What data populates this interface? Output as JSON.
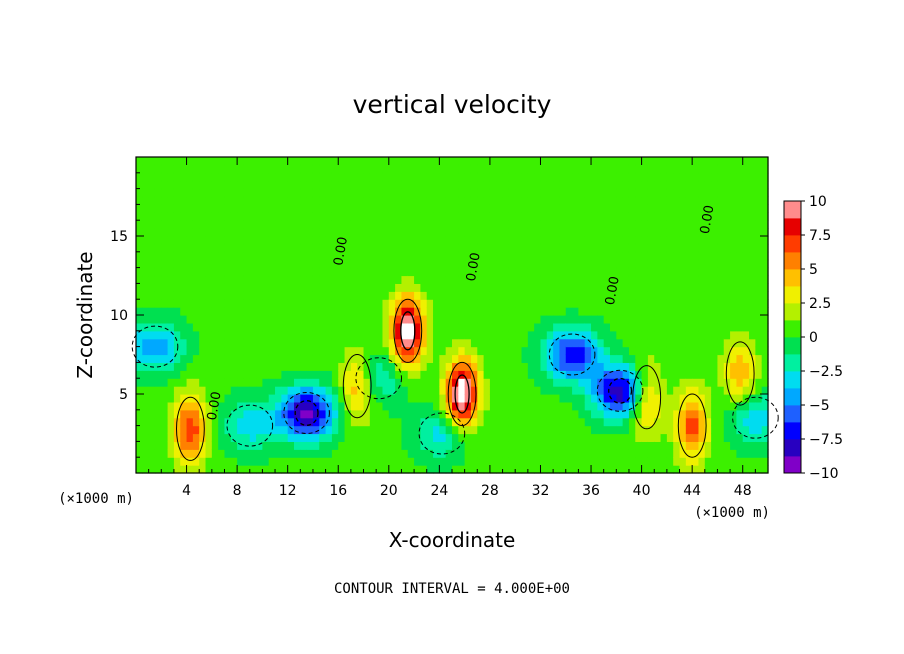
{
  "chart_data": {
    "type": "heatmap",
    "title": "vertical velocity",
    "xlabel": "X-coordinate",
    "ylabel": "Z-coordinate",
    "x_unit": "(×1000 m)",
    "xlim": [
      0,
      50
    ],
    "ylim": [
      0,
      20
    ],
    "x_ticks": [
      4,
      8,
      12,
      16,
      20,
      24,
      28,
      32,
      36,
      40,
      44,
      48
    ],
    "x_tick_labels": [
      "4",
      "8",
      "12",
      "16",
      "20",
      "24",
      "28",
      "32",
      "36",
      "40",
      "44",
      "48"
    ],
    "y_ticks": [
      5,
      10,
      15
    ],
    "y_tick_labels": [
      "5",
      "10",
      "15"
    ],
    "colorbar": {
      "range": [
        -10,
        10
      ],
      "tick_values": [
        10,
        7.5,
        5,
        2.5,
        0,
        -2.5,
        -5,
        -7.5,
        -10
      ],
      "tick_labels": [
        "10",
        "7.5",
        "5",
        "2.5",
        "0",
        "−2.5",
        "−5",
        "−7.5",
        "−10"
      ]
    },
    "contour_labels": [
      {
        "text": "0.00",
        "x": 6.5,
        "z": 4.2
      },
      {
        "text": "0.00",
        "x": 16.5,
        "z": 14.0
      },
      {
        "text": "0.00",
        "x": 27.0,
        "z": 13.0
      },
      {
        "text": "0.00",
        "x": 38.0,
        "z": 11.5
      },
      {
        "text": "0.00",
        "x": 45.5,
        "z": 16.0
      }
    ],
    "contour_interval_text": "CONTOUR INTERVAL = 4.000E+00",
    "features": [
      {
        "kind": "updraft",
        "x": 21.5,
        "z": 9.0,
        "peak": 10.5
      },
      {
        "kind": "updraft",
        "x": 25.8,
        "z": 5.0,
        "peak": 11.0
      },
      {
        "kind": "updraft",
        "x": 4.3,
        "z": 2.8,
        "peak": 7.0
      },
      {
        "kind": "updraft",
        "x": 44.0,
        "z": 3.0,
        "peak": 6.5
      },
      {
        "kind": "updraft",
        "x": 17.5,
        "z": 5.5,
        "peak": 5.0
      },
      {
        "kind": "updraft",
        "x": 40.4,
        "z": 4.8,
        "peak": 5.5
      },
      {
        "kind": "updraft",
        "x": 47.8,
        "z": 6.3,
        "peak": 4.5
      },
      {
        "kind": "downdraft",
        "x": 13.5,
        "z": 3.8,
        "peak": -9.5
      },
      {
        "kind": "downdraft",
        "x": 34.5,
        "z": 7.5,
        "peak": -7.5
      },
      {
        "kind": "downdraft",
        "x": 38.3,
        "z": 5.2,
        "peak": -9.0
      },
      {
        "kind": "downdraft",
        "x": 19.2,
        "z": 6.0,
        "peak": -3.0
      },
      {
        "kind": "downdraft",
        "x": 24.2,
        "z": 2.5,
        "peak": -3.5
      },
      {
        "kind": "downdraft",
        "x": 9.0,
        "z": 3.0,
        "peak": -3.5
      },
      {
        "kind": "downdraft",
        "x": 1.5,
        "z": 8.0,
        "peak": -5.0
      },
      {
        "kind": "downdraft",
        "x": 49.0,
        "z": 3.5,
        "peak": -4.0
      }
    ]
  }
}
